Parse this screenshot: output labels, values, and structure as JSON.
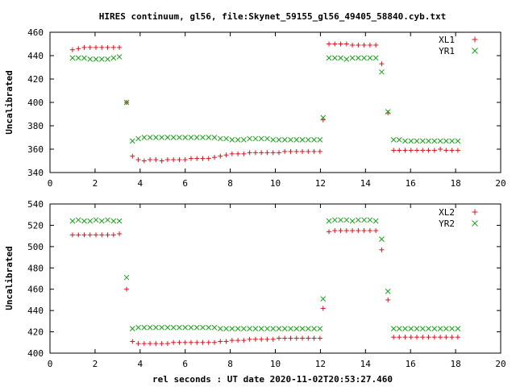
{
  "chart_data": [
    {
      "type": "scatter",
      "title": "HIRES continuum, gl56, file:Skynet_59155_gl56_49405_58840.cyb.txt",
      "xlabel": "",
      "ylabel": "Uncalibrated",
      "xlim": [
        0,
        20
      ],
      "ylim": [
        340,
        460
      ],
      "xticks": [
        0,
        2,
        4,
        6,
        8,
        10,
        12,
        14,
        16,
        18,
        20
      ],
      "yticks": [
        340,
        360,
        380,
        400,
        420,
        440,
        460
      ],
      "legend": "top-right",
      "series": [
        {
          "name": "XL1",
          "marker": "plus",
          "color": "#e0101c",
          "x": [
            1.0,
            1.26,
            1.52,
            1.78,
            2.04,
            2.3,
            2.56,
            2.82,
            3.08,
            3.4,
            3.66,
            3.92,
            4.18,
            4.44,
            4.7,
            4.96,
            5.22,
            5.48,
            5.74,
            6.0,
            6.26,
            6.52,
            6.78,
            7.04,
            7.3,
            7.56,
            7.82,
            8.08,
            8.34,
            8.6,
            8.86,
            9.12,
            9.38,
            9.64,
            9.9,
            10.16,
            10.42,
            10.68,
            10.94,
            11.2,
            11.46,
            11.72,
            11.98,
            12.12,
            12.38,
            12.64,
            12.9,
            13.16,
            13.42,
            13.68,
            13.94,
            14.2,
            14.46,
            14.72,
            15.0,
            15.25,
            15.5,
            15.76,
            16.02,
            16.28,
            16.54,
            16.8,
            17.06,
            17.32,
            17.58,
            17.84,
            18.1
          ],
          "y": [
            445,
            446,
            447,
            447,
            447,
            447,
            447,
            447,
            447,
            400,
            354,
            351,
            350,
            351,
            351,
            350,
            351,
            351,
            351,
            351,
            352,
            352,
            352,
            352,
            353,
            354,
            355,
            356,
            356,
            356,
            357,
            357,
            357,
            357,
            357,
            357,
            358,
            358,
            358,
            358,
            358,
            358,
            358,
            385,
            450,
            450,
            450,
            450,
            449,
            449,
            449,
            449,
            449,
            433,
            391,
            359,
            359,
            359,
            359,
            359,
            359,
            359,
            359,
            360,
            359,
            359,
            359
          ]
        },
        {
          "name": "YR1",
          "marker": "cross",
          "color": "#18a018",
          "x": [
            1.0,
            1.26,
            1.52,
            1.78,
            2.04,
            2.3,
            2.56,
            2.82,
            3.08,
            3.4,
            3.66,
            3.92,
            4.18,
            4.44,
            4.7,
            4.96,
            5.22,
            5.48,
            5.74,
            6.0,
            6.26,
            6.52,
            6.78,
            7.04,
            7.3,
            7.56,
            7.82,
            8.08,
            8.34,
            8.6,
            8.86,
            9.12,
            9.38,
            9.64,
            9.9,
            10.16,
            10.42,
            10.68,
            10.94,
            11.2,
            11.46,
            11.72,
            11.98,
            12.12,
            12.38,
            12.64,
            12.9,
            13.16,
            13.42,
            13.68,
            13.94,
            14.2,
            14.46,
            14.72,
            15.0,
            15.25,
            15.5,
            15.76,
            16.02,
            16.28,
            16.54,
            16.8,
            17.06,
            17.32,
            17.58,
            17.84,
            18.1
          ],
          "y": [
            438,
            438,
            438,
            437,
            437,
            437,
            437,
            438,
            439,
            400,
            367,
            369,
            370,
            370,
            370,
            370,
            370,
            370,
            370,
            370,
            370,
            370,
            370,
            370,
            370,
            369,
            369,
            368,
            368,
            368,
            369,
            369,
            369,
            369,
            368,
            368,
            368,
            368,
            368,
            368,
            368,
            368,
            368,
            387,
            438,
            438,
            438,
            437,
            438,
            438,
            438,
            438,
            438,
            426,
            392,
            368,
            368,
            367,
            367,
            367,
            367,
            367,
            367,
            367,
            367,
            367,
            367
          ]
        }
      ]
    },
    {
      "type": "scatter",
      "title": "",
      "xlabel": "rel seconds : UT date 2020-11-02T20:53:27.460",
      "ylabel": "Uncalibrated",
      "xlim": [
        0,
        20
      ],
      "ylim": [
        400,
        540
      ],
      "xticks": [
        0,
        2,
        4,
        6,
        8,
        10,
        12,
        14,
        16,
        18,
        20
      ],
      "yticks": [
        400,
        420,
        440,
        460,
        480,
        500,
        520,
        540
      ],
      "legend": "top-right",
      "series": [
        {
          "name": "XL2",
          "marker": "plus",
          "color": "#e0101c",
          "x": [
            1.0,
            1.26,
            1.52,
            1.78,
            2.04,
            2.3,
            2.56,
            2.82,
            3.08,
            3.4,
            3.66,
            3.92,
            4.18,
            4.44,
            4.7,
            4.96,
            5.22,
            5.48,
            5.74,
            6.0,
            6.26,
            6.52,
            6.78,
            7.04,
            7.3,
            7.56,
            7.82,
            8.08,
            8.34,
            8.6,
            8.86,
            9.12,
            9.38,
            9.64,
            9.9,
            10.16,
            10.42,
            10.68,
            10.94,
            11.2,
            11.46,
            11.72,
            11.98,
            12.12,
            12.38,
            12.64,
            12.9,
            13.16,
            13.42,
            13.68,
            13.94,
            14.2,
            14.46,
            14.72,
            15.0,
            15.25,
            15.5,
            15.76,
            16.02,
            16.28,
            16.54,
            16.8,
            17.06,
            17.32,
            17.58,
            17.84,
            18.1
          ],
          "y": [
            511,
            511,
            511,
            511,
            511,
            511,
            511,
            511,
            512,
            460,
            411,
            409,
            409,
            409,
            409,
            409,
            409,
            410,
            410,
            410,
            410,
            410,
            410,
            410,
            410,
            411,
            411,
            412,
            412,
            412,
            413,
            413,
            413,
            413,
            413,
            414,
            414,
            414,
            414,
            414,
            414,
            414,
            414,
            442,
            514,
            515,
            515,
            515,
            515,
            515,
            515,
            515,
            515,
            497,
            450,
            415,
            415,
            415,
            415,
            415,
            415,
            415,
            415,
            415,
            415,
            415,
            415
          ]
        },
        {
          "name": "YR2",
          "marker": "cross",
          "color": "#18a018",
          "x": [
            1.0,
            1.26,
            1.52,
            1.78,
            2.04,
            2.3,
            2.56,
            2.82,
            3.08,
            3.4,
            3.66,
            3.92,
            4.18,
            4.44,
            4.7,
            4.96,
            5.22,
            5.48,
            5.74,
            6.0,
            6.26,
            6.52,
            6.78,
            7.04,
            7.3,
            7.56,
            7.82,
            8.08,
            8.34,
            8.6,
            8.86,
            9.12,
            9.38,
            9.64,
            9.9,
            10.16,
            10.42,
            10.68,
            10.94,
            11.2,
            11.46,
            11.72,
            11.98,
            12.12,
            12.38,
            12.64,
            12.9,
            13.16,
            13.42,
            13.68,
            13.94,
            14.2,
            14.46,
            14.72,
            15.0,
            15.25,
            15.5,
            15.76,
            16.02,
            16.28,
            16.54,
            16.8,
            17.06,
            17.32,
            17.58,
            17.84,
            18.1
          ],
          "y": [
            524,
            525,
            524,
            524,
            525,
            524,
            525,
            524,
            524,
            471,
            423,
            424,
            424,
            424,
            424,
            424,
            424,
            424,
            424,
            424,
            424,
            424,
            424,
            424,
            424,
            423,
            423,
            423,
            423,
            423,
            423,
            423,
            423,
            423,
            423,
            423,
            423,
            423,
            423,
            423,
            423,
            423,
            423,
            451,
            524,
            525,
            525,
            525,
            524,
            525,
            525,
            525,
            524,
            507,
            458,
            423,
            423,
            423,
            423,
            423,
            423,
            423,
            423,
            423,
            423,
            423,
            423
          ]
        }
      ]
    }
  ]
}
